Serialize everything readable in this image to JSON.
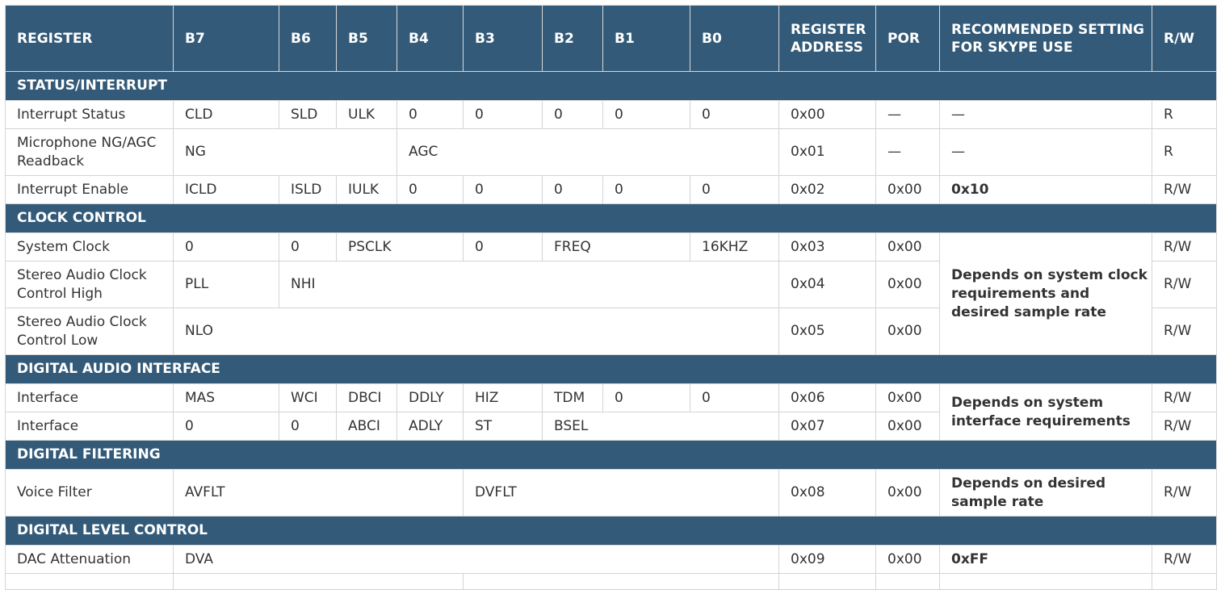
{
  "headers": [
    "REGISTER",
    "B7",
    "B6",
    "B5",
    "B4",
    "B3",
    "B2",
    "B1",
    "B0",
    "REGISTER ADDRESS",
    "POR",
    "RECOMMENDED SETTING FOR SKYPE USE",
    "R/W"
  ],
  "rows": [
    {
      "section": "STATUS/INTERRUPT"
    },
    {
      "h": 35,
      "cells": [
        {
          "t": "Interrupt Status"
        },
        {
          "t": "CLD"
        },
        {
          "t": "SLD"
        },
        {
          "t": "ULK"
        },
        {
          "t": "0"
        },
        {
          "t": "0"
        },
        {
          "t": "0"
        },
        {
          "t": "0"
        },
        {
          "t": "0"
        },
        {
          "t": "0x00"
        },
        {
          "t": "—"
        },
        {
          "t": "—"
        },
        {
          "t": "R"
        }
      ]
    },
    {
      "h": 58,
      "cells": [
        {
          "t": "Microphone NG/AGC Readback"
        },
        {
          "t": "NG",
          "span": 3
        },
        {
          "t": "AGC",
          "span": 5
        },
        {
          "t": "0x01"
        },
        {
          "t": "—"
        },
        {
          "t": "—"
        },
        {
          "t": "R"
        }
      ]
    },
    {
      "h": 35,
      "cells": [
        {
          "t": "Interrupt Enable"
        },
        {
          "t": "ICLD"
        },
        {
          "t": "ISLD"
        },
        {
          "t": "IULK"
        },
        {
          "t": "0"
        },
        {
          "t": "0"
        },
        {
          "t": "0"
        },
        {
          "t": "0"
        },
        {
          "t": "0"
        },
        {
          "t": "0x02"
        },
        {
          "t": "0x00"
        },
        {
          "t": "0x10",
          "bold": true
        },
        {
          "t": "R/W"
        }
      ]
    },
    {
      "section": "CLOCK CONTROL"
    },
    {
      "h": 35,
      "cells": [
        {
          "t": "System Clock"
        },
        {
          "t": "0"
        },
        {
          "t": "0"
        },
        {
          "t": "PSCLK",
          "span": 2
        },
        {
          "t": "0"
        },
        {
          "t": "FREQ",
          "span": 2
        },
        {
          "t": "16KHZ"
        },
        {
          "t": "0x03"
        },
        {
          "t": "0x00"
        },
        {
          "t": "Depends on system clock requirements and desired sample rate",
          "bold": true,
          "rowspan": 3
        },
        {
          "t": "R/W"
        }
      ]
    },
    {
      "h": 58,
      "cells": [
        {
          "t": "Stereo Audio Clock Control High"
        },
        {
          "t": "PLL"
        },
        {
          "t": "NHI",
          "span": 7
        },
        {
          "t": "0x04"
        },
        {
          "t": "0x00"
        },
        {
          "t": "R/W"
        }
      ]
    },
    {
      "h": 58,
      "cells": [
        {
          "t": "Stereo Audio Clock Control Low"
        },
        {
          "t": "NLO",
          "span": 8
        },
        {
          "t": "0x05"
        },
        {
          "t": "0x00"
        },
        {
          "t": "R/W"
        }
      ]
    },
    {
      "section": "DIGITAL AUDIO INTERFACE"
    },
    {
      "h": 35,
      "cells": [
        {
          "t": "Interface"
        },
        {
          "t": "MAS"
        },
        {
          "t": "WCI"
        },
        {
          "t": "DBCI"
        },
        {
          "t": "DDLY"
        },
        {
          "t": "HIZ"
        },
        {
          "t": "TDM"
        },
        {
          "t": "0"
        },
        {
          "t": "0"
        },
        {
          "t": "0x06"
        },
        {
          "t": "0x00"
        },
        {
          "t": "Depends on system interface requirements",
          "bold": true,
          "rowspan": 2
        },
        {
          "t": "R/W"
        }
      ]
    },
    {
      "h": 35,
      "cells": [
        {
          "t": "Interface"
        },
        {
          "t": "0"
        },
        {
          "t": "0"
        },
        {
          "t": "ABCI"
        },
        {
          "t": "ADLY"
        },
        {
          "t": "ST"
        },
        {
          "t": "BSEL",
          "span": 3
        },
        {
          "t": "0x07"
        },
        {
          "t": "0x00"
        },
        {
          "t": "R/W"
        }
      ]
    },
    {
      "section": "DIGITAL FILTERING"
    },
    {
      "h": 58,
      "cells": [
        {
          "t": "Voice Filter"
        },
        {
          "t": "AVFLT",
          "span": 4
        },
        {
          "t": "DVFLT",
          "span": 4
        },
        {
          "t": "0x08"
        },
        {
          "t": "0x00"
        },
        {
          "t": "Depends on desired sample rate",
          "bold": true
        },
        {
          "t": "R/W"
        }
      ]
    },
    {
      "section": "DIGITAL LEVEL CONTROL"
    },
    {
      "h": 35,
      "cells": [
        {
          "t": "DAC Attenuation"
        },
        {
          "t": "DVA",
          "span": 8
        },
        {
          "t": "0x09"
        },
        {
          "t": "0x00"
        },
        {
          "t": "0xFF",
          "bold": true
        },
        {
          "t": "R/W"
        }
      ]
    }
  ]
}
